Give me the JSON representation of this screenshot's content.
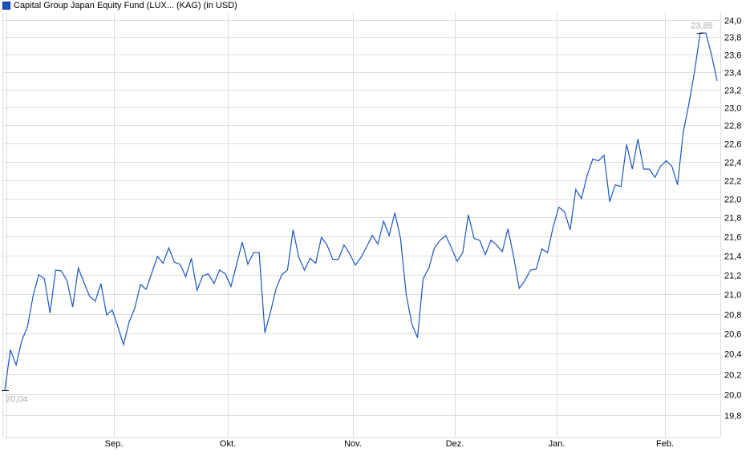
{
  "chart_data": {
    "type": "line",
    "title": "Capital Group Japan Equity Fund (LUX... (KAG) (in USD)",
    "legend": {
      "entries": [
        "Capital Group Japan Equity Fund (LUX... (KAG) (in USD)"
      ],
      "placement": "top-left"
    },
    "colors": {
      "series": "#1a55c0",
      "grid": "#dddddd",
      "extreme_label": "#aaaaaa"
    },
    "y_scale": "log",
    "grid": true,
    "ylim": [
      19.8,
      24.0
    ],
    "y_ticks": [
      "19,8",
      "20,0",
      "20,2",
      "20,4",
      "20,6",
      "20,8",
      "21,0",
      "21,2",
      "21,4",
      "21,6",
      "21,8",
      "22,0",
      "22,2",
      "22,4",
      "22,6",
      "22,8",
      "23,0",
      "23,2",
      "23,4",
      "23,6",
      "23,8",
      "24,0"
    ],
    "x_ticks": [
      "Sep.",
      "Okt.",
      "Nov.",
      "Dez.",
      "Jan.",
      "Feb."
    ],
    "min_label": "20,04",
    "max_label": "23,85",
    "series": [
      {
        "values": [
          20.04,
          20.44,
          20.29,
          20.53,
          20.67,
          20.98,
          21.2,
          21.16,
          20.81,
          21.25,
          21.24,
          21.14,
          20.87,
          21.27,
          21.12,
          20.98,
          20.93,
          21.11,
          20.79,
          20.84,
          20.67,
          20.49,
          20.72,
          20.86,
          21.1,
          21.05,
          21.22,
          21.39,
          21.32,
          21.48,
          21.33,
          21.31,
          21.18,
          21.37,
          21.04,
          21.19,
          21.21,
          21.11,
          21.25,
          21.21,
          21.08,
          21.31,
          21.54,
          21.31,
          21.43,
          21.43,
          20.61,
          20.82,
          21.06,
          21.2,
          21.25,
          21.67,
          21.38,
          21.25,
          21.37,
          21.32,
          21.59,
          21.51,
          21.36,
          21.36,
          21.51,
          21.42,
          21.3,
          21.38,
          21.49,
          21.61,
          21.52,
          21.76,
          21.61,
          21.85,
          21.58,
          21.0,
          20.7,
          20.56,
          21.16,
          21.27,
          21.48,
          21.56,
          21.61,
          21.48,
          21.34,
          21.43,
          21.83,
          21.58,
          21.56,
          21.41,
          21.56,
          21.51,
          21.44,
          21.68,
          21.39,
          21.06,
          21.14,
          21.25,
          21.26,
          21.47,
          21.43,
          21.7,
          21.91,
          21.86,
          21.67,
          22.1,
          22.0,
          22.25,
          22.43,
          22.41,
          22.47,
          21.97,
          22.15,
          22.13,
          22.59,
          22.32,
          22.65,
          22.32,
          22.32,
          22.23,
          22.35,
          22.41,
          22.35,
          22.15,
          22.72,
          23.04,
          23.4,
          23.85,
          23.85,
          23.6,
          23.3
        ]
      }
    ]
  }
}
